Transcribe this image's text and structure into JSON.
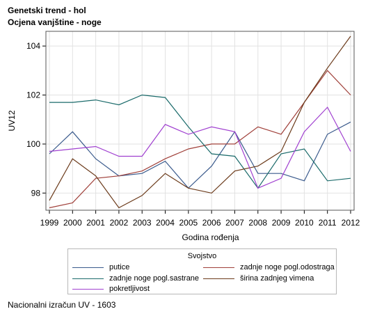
{
  "titles": {
    "line1": "Genetski trend - hol",
    "line2": "Ocjena vanjštine - noge"
  },
  "footnote": "Nacionalni izračun UV - 1603",
  "legend_title": "Svojstvo",
  "chart_data": {
    "type": "line",
    "xlabel": "Godina rođenja",
    "ylabel": "UV12",
    "x": [
      1999,
      2000,
      2001,
      2002,
      2003,
      2004,
      2005,
      2006,
      2007,
      2008,
      2009,
      2010,
      2011,
      2012
    ],
    "xticks": [
      "1999",
      "2000",
      "2001",
      "2002",
      "2003",
      "2004",
      "2005",
      "2006",
      "2007",
      "2008",
      "2009",
      "2010",
      "2011",
      "2012"
    ],
    "ylim": [
      97.3,
      104.6
    ],
    "yticks": [
      98,
      100,
      102,
      104
    ],
    "grid": true,
    "legend_position": "bottom",
    "series": [
      {
        "name": "putice",
        "color": "#3a5a8c",
        "values": [
          99.6,
          100.5,
          99.4,
          98.7,
          98.8,
          99.3,
          98.2,
          99.1,
          100.5,
          98.8,
          98.8,
          98.5,
          100.4,
          100.9
        ]
      },
      {
        "name": "zadnje noge pogl.odostraga",
        "color": "#a0403a",
        "values": [
          97.4,
          97.6,
          98.6,
          98.7,
          98.9,
          99.4,
          99.8,
          100.0,
          100.0,
          100.7,
          100.4,
          101.7,
          103.0,
          102.0
        ]
      },
      {
        "name": "zadnje noge pogl.sastrane",
        "color": "#1a6a6a",
        "values": [
          101.7,
          101.7,
          101.8,
          101.6,
          102.0,
          101.9,
          100.7,
          99.6,
          99.5,
          98.2,
          99.6,
          99.8,
          98.5,
          98.6
        ]
      },
      {
        "name": "širina zadnjeg vimena",
        "color": "#6b3a1a",
        "values": [
          97.7,
          99.4,
          98.7,
          97.4,
          97.9,
          98.8,
          98.2,
          98.0,
          98.9,
          99.1,
          99.7,
          101.7,
          103.1,
          104.4
        ]
      },
      {
        "name": "pokretljivost",
        "color": "#a040d0",
        "values": [
          99.7,
          99.8,
          99.9,
          99.5,
          99.5,
          100.8,
          100.4,
          100.7,
          100.5,
          98.2,
          98.6,
          100.5,
          101.5,
          99.7
        ]
      }
    ]
  }
}
